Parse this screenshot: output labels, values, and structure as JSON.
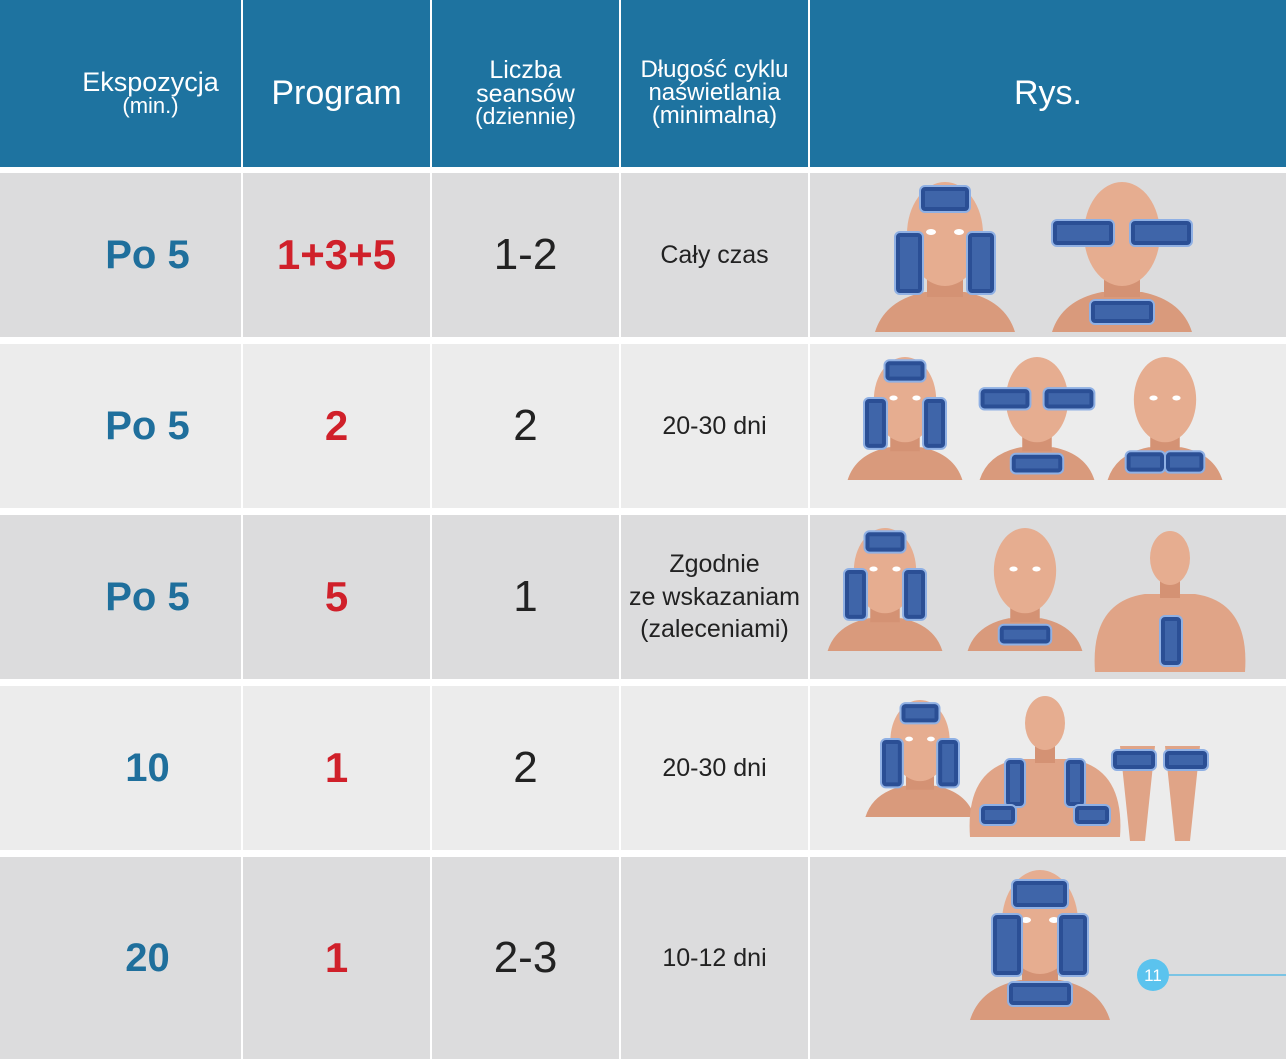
{
  "table": {
    "header": [
      [
        "Ekspozycja",
        "(min.)"
      ],
      [
        "Program"
      ],
      [
        "Liczba",
        "seansów",
        "(dziennie)"
      ],
      [
        "Długość cyklu",
        "naświetlania",
        "(minimalna)"
      ],
      [
        "Rys."
      ]
    ],
    "rows": [
      {
        "exposure": "Po 5",
        "program": "1+3+5",
        "sessions": "1-2",
        "cycle": [
          "Cały czas"
        ]
      },
      {
        "exposure": "Po 5",
        "program": "2",
        "sessions": "2",
        "cycle": [
          "20-30 dni"
        ]
      },
      {
        "exposure": "Po 5",
        "program": "5",
        "sessions": "1",
        "cycle": [
          "Zgodnie",
          "ze wskazaniam",
          "(zaleceniami)"
        ]
      },
      {
        "exposure": "10",
        "program": "1",
        "sessions": "2",
        "cycle": [
          "20-30 dni"
        ]
      },
      {
        "exposure": "20",
        "program": "1",
        "sessions": "2-3",
        "cycle": [
          "10-12 dni"
        ]
      }
    ]
  },
  "page_number": "11"
}
